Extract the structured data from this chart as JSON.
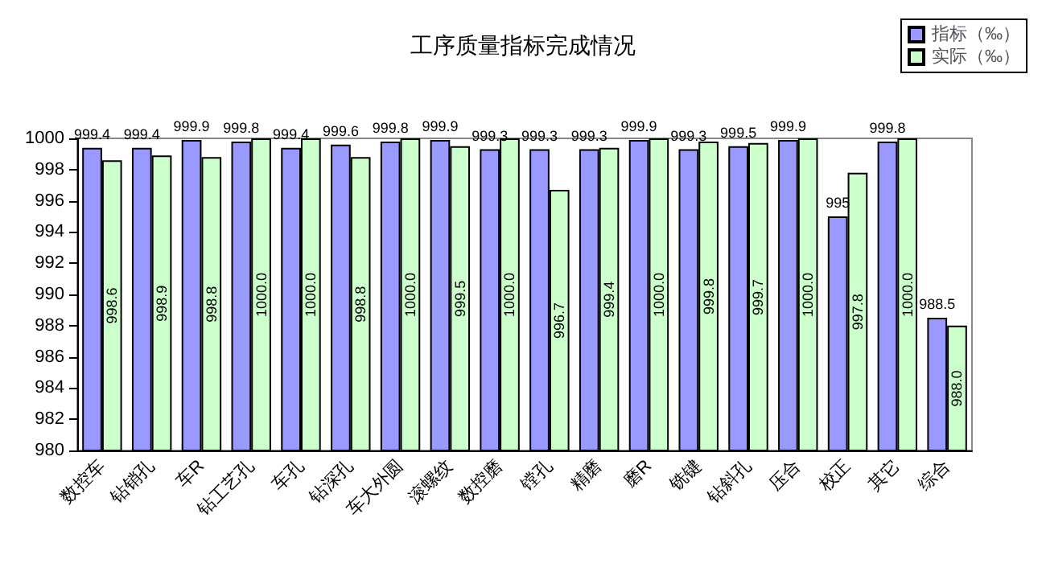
{
  "chart_data": {
    "type": "bar",
    "title": "工序质量指标完成情况",
    "categories": [
      "数控车",
      "钻销孔",
      "车R",
      "钻工艺孔",
      "车孔",
      "钻深孔",
      "车大外圆",
      "滚螺纹",
      "数控磨",
      "镗孔",
      "精磨",
      "磨R",
      "铣键",
      "钻斜孔",
      "压合",
      "校正",
      "其它",
      "综合"
    ],
    "series": [
      {
        "name": "指标（‰）",
        "color": "#9999ff",
        "values": [
          999.4,
          999.4,
          999.9,
          999.8,
          999.4,
          999.6,
          999.8,
          999.9,
          999.3,
          999.3,
          999.3,
          999.9,
          999.3,
          999.5,
          999.9,
          995,
          999.8,
          988.5
        ],
        "value_labels": [
          "999.4",
          "999.4",
          "999.9",
          "999.8",
          "999.4",
          "999.6",
          "999.8",
          "999.9",
          "999.3",
          "999.3",
          "999.3",
          "999.9",
          "999.3",
          "999.5",
          "999.9",
          "995",
          "999.8",
          "988.5"
        ]
      },
      {
        "name": "实际（‰）",
        "color": "#ccffcc",
        "values": [
          998.6,
          998.9,
          998.8,
          1000.0,
          1000.0,
          998.8,
          1000.0,
          999.5,
          1000.0,
          996.7,
          999.4,
          1000.0,
          999.8,
          999.7,
          1000.0,
          997.8,
          1000.0,
          988.0
        ],
        "value_labels": [
          "998.6",
          "998.9",
          "998.8",
          "1000.0",
          "1000.0",
          "998.8",
          "1000.0",
          "999.5",
          "1000.0",
          "996.7",
          "999.4",
          "1000.0",
          "999.8",
          "999.7",
          "1000.0",
          "997.8",
          "1000.0",
          "988.0"
        ]
      }
    ],
    "ylim": [
      980,
      1000
    ],
    "yticks": [
      980,
      982,
      984,
      986,
      988,
      990,
      992,
      994,
      996,
      998,
      1000
    ],
    "grid": false,
    "legend": "top right"
  }
}
